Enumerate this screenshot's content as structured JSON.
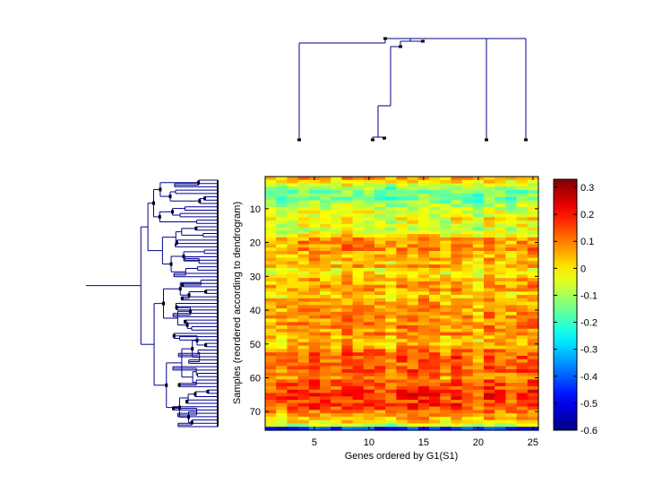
{
  "chart_data": {
    "type": "heatmap",
    "title": "",
    "xlabel": "Genes ordered by G1(S1)",
    "ylabel": "Samples (reordered according to dendrogram)",
    "xlim": [
      0.5,
      25.5
    ],
    "ylim": [
      0.5,
      75.5
    ],
    "x_ticks": [
      5,
      10,
      15,
      20,
      25
    ],
    "y_ticks": [
      10,
      20,
      30,
      40,
      50,
      60,
      70
    ],
    "n_genes": 25,
    "n_samples": 75,
    "colormap": "jet",
    "colorbar": {
      "min": -0.6,
      "max": 0.33,
      "ticks": [
        0.3,
        0.2,
        0.1,
        0,
        -0.1,
        -0.2,
        -0.3,
        -0.4,
        -0.5,
        -0.6
      ],
      "tick_labels": [
        "0.3",
        "0.2",
        "0.1",
        "0",
        "-0.1",
        "-0.2",
        "-0.3",
        "-0.4",
        "-0.5",
        "-0.6"
      ]
    },
    "sample_profile": [
      0.05,
      0.0,
      -0.05,
      -0.12,
      -0.15,
      -0.14,
      -0.16,
      -0.12,
      -0.1,
      -0.08,
      -0.04,
      -0.06,
      -0.02,
      -0.05,
      -0.03,
      -0.06,
      -0.05,
      -0.01,
      0.07,
      0.08,
      0.07,
      0.09,
      0.05,
      0.03,
      0.04,
      0.02,
      0.06,
      -0.02,
      0.0,
      0.02,
      0.05,
      0.06,
      0.07,
      0.06,
      0.03,
      0.02,
      0.05,
      0.05,
      0.08,
      0.07,
      0.08,
      0.09,
      0.07,
      0.08,
      0.09,
      0.06,
      0.1,
      0.05,
      0.03,
      0.05,
      0.07,
      0.1,
      0.11,
      0.13,
      0.12,
      0.11,
      0.12,
      0.13,
      0.11,
      0.08,
      0.13,
      0.15,
      0.14,
      0.16,
      0.18,
      0.17,
      0.15,
      0.16,
      0.14,
      0.1,
      0.08,
      0.04,
      0.0,
      -0.08,
      -0.45
    ],
    "gene_offsets": [
      -0.02,
      -0.03,
      0.0,
      0.01,
      0.02,
      0.0,
      -0.01,
      0.03,
      0.01,
      0.02,
      0.0,
      -0.03,
      0.01,
      0.02,
      0.03,
      0.01,
      -0.02,
      0.02,
      0.0,
      -0.04,
      0.02,
      0.0,
      -0.02,
      0.01,
      0.02
    ],
    "noise_amplitude": 0.07,
    "sample_dendrogram": {
      "leaves": 75,
      "orientation": "left"
    },
    "gene_dendrogram": {
      "leaves": 25,
      "orientation": "top"
    }
  }
}
